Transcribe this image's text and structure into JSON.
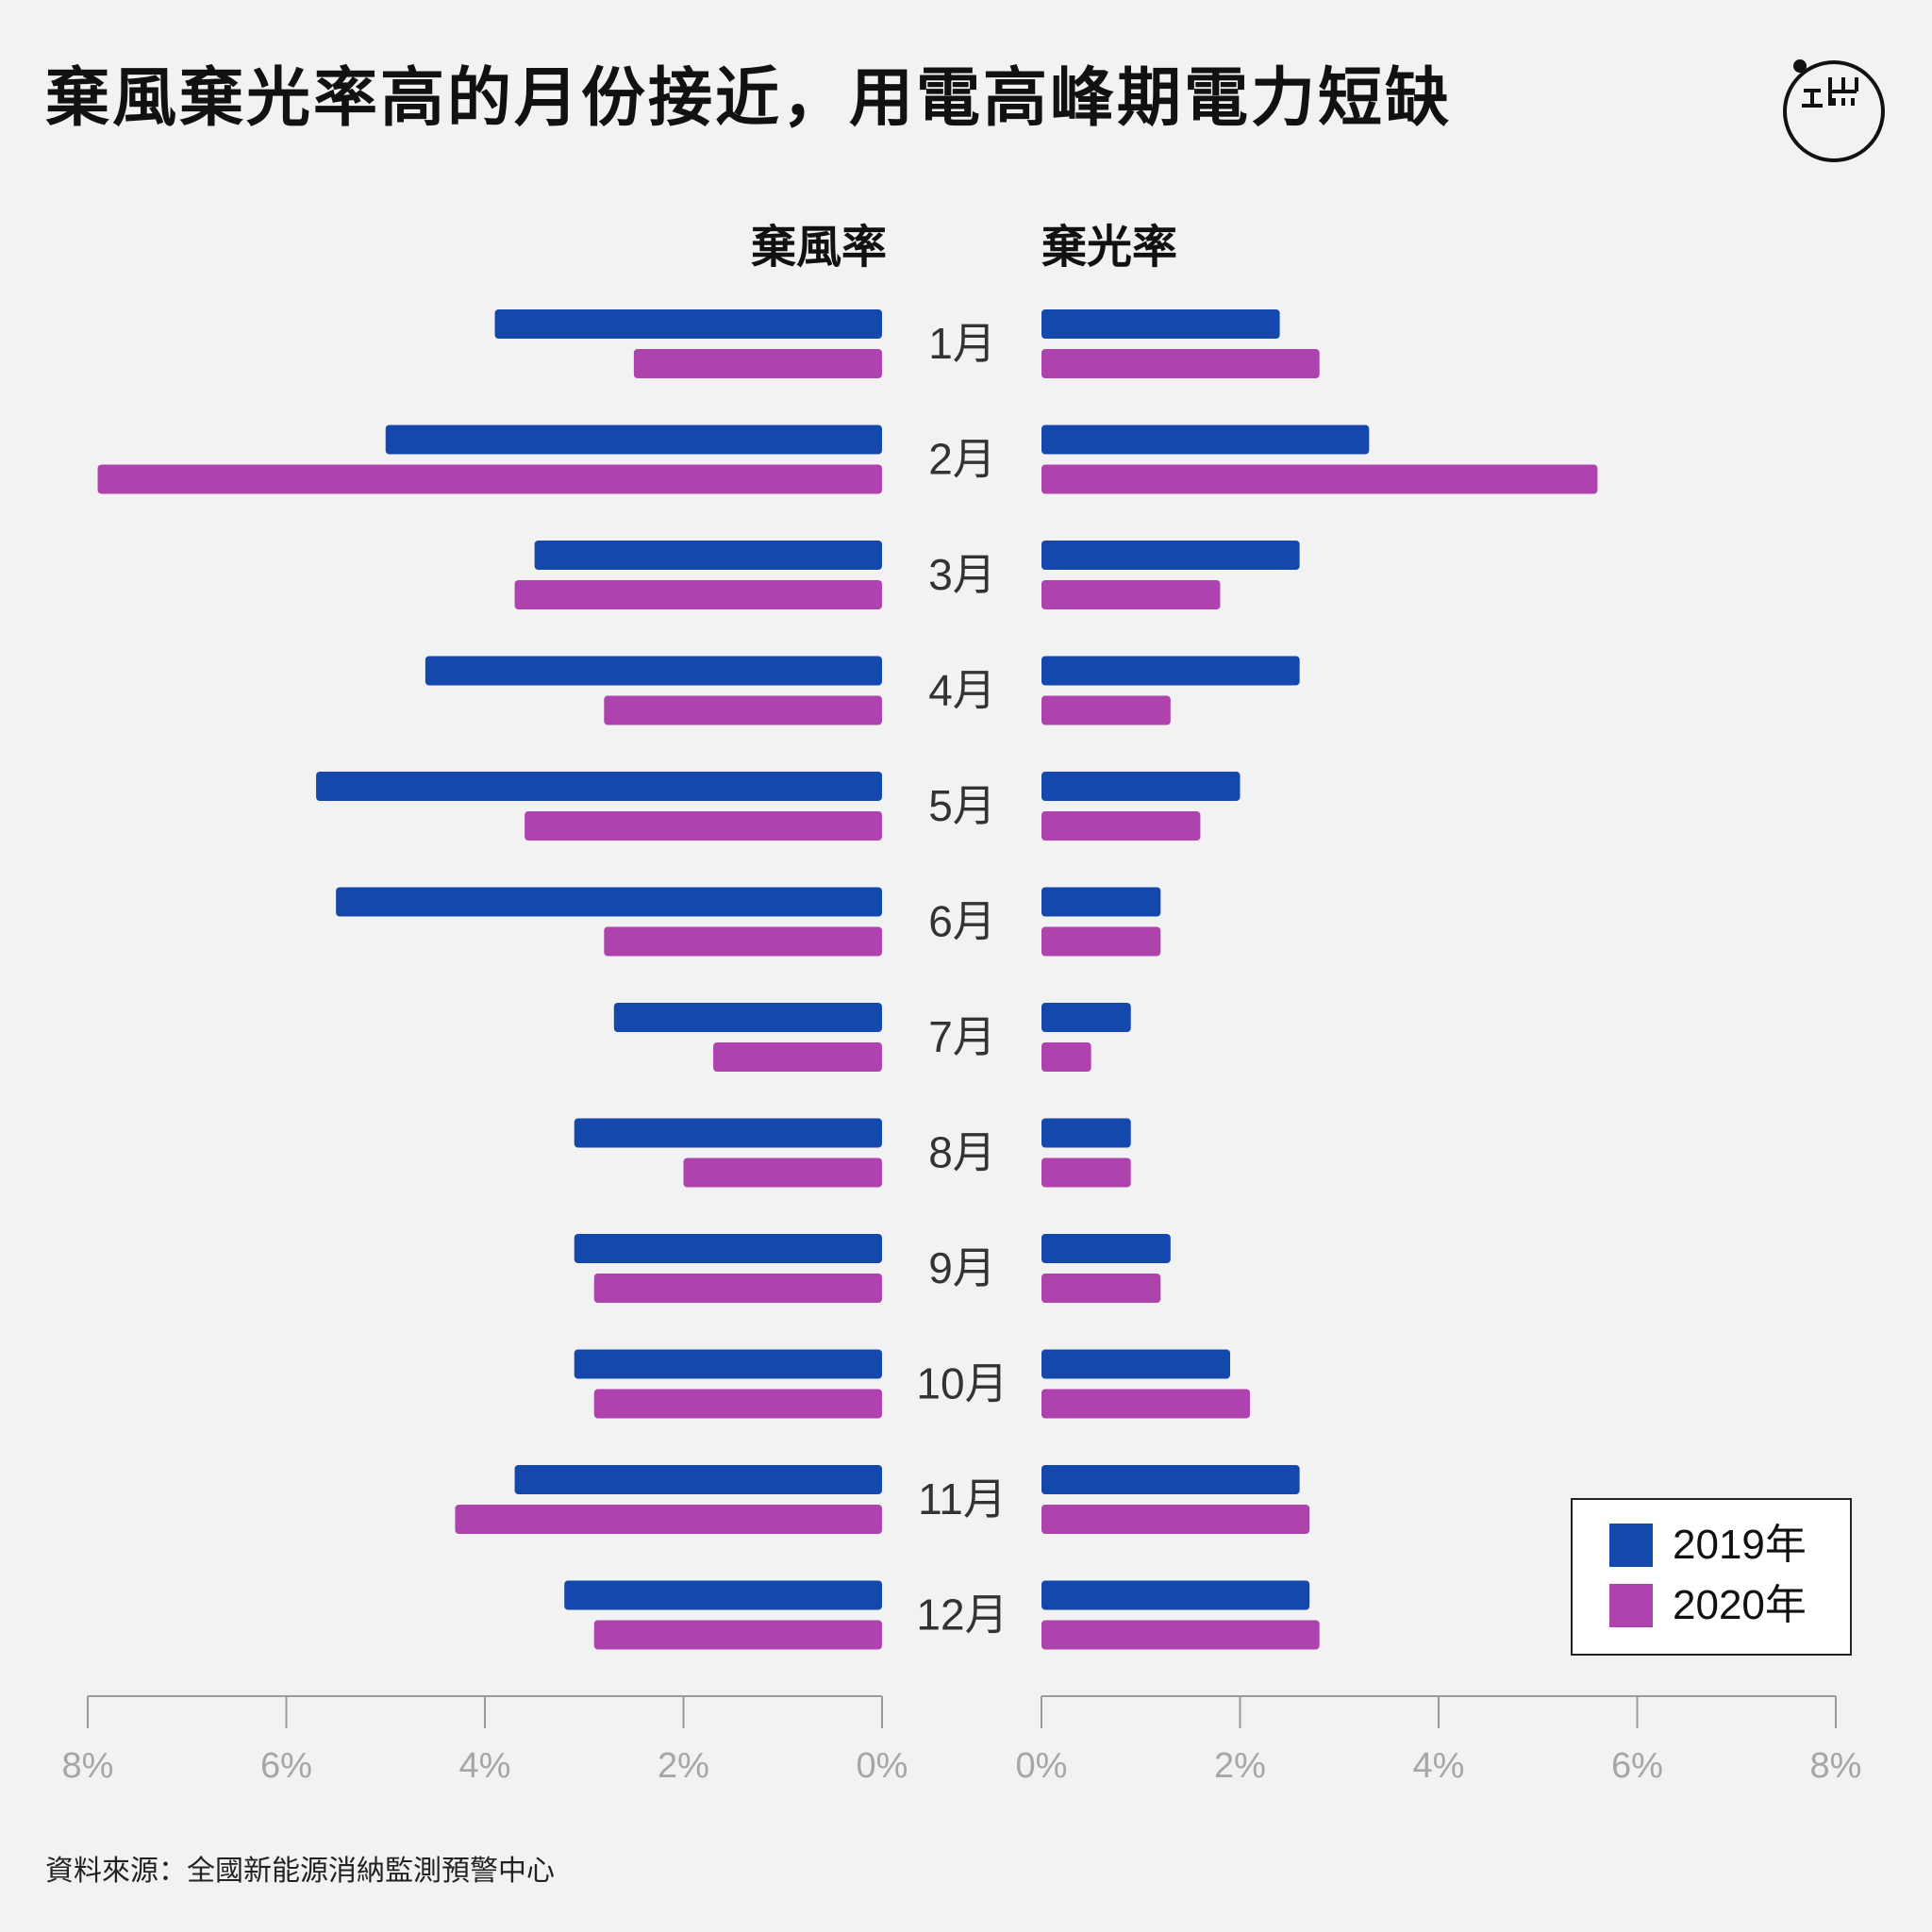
{
  "title": "棄風棄光率高的月份接近，用電高峰期電力短缺",
  "source": "資料來源：全國新能源消納監測預警中心",
  "logo": {
    "icon": "initium-logo-icon",
    "color": "#111111"
  },
  "colors": {
    "series_2019": "#1548ad",
    "series_2020": "#ae43ad",
    "axis": "#9a9a9a",
    "tick_label": "#a6a6a6",
    "month_label": "#333333"
  },
  "chart_data": {
    "type": "bar",
    "orientation": "horizontal-butterfly",
    "categories": [
      "1月",
      "2月",
      "3月",
      "4月",
      "5月",
      "6月",
      "7月",
      "8月",
      "9月",
      "10月",
      "11月",
      "12月"
    ],
    "panels": [
      {
        "title": "棄風率",
        "side": "left",
        "series": [
          {
            "name": "2019年",
            "values": [
              3.9,
              5.0,
              3.5,
              4.6,
              5.7,
              5.5,
              2.7,
              3.1,
              3.1,
              3.1,
              3.7,
              3.2
            ]
          },
          {
            "name": "2020年",
            "values": [
              2.5,
              7.9,
              3.7,
              2.8,
              3.6,
              2.8,
              1.7,
              2.0,
              2.9,
              2.9,
              4.3,
              2.9
            ]
          }
        ]
      },
      {
        "title": "棄光率",
        "side": "right",
        "series": [
          {
            "name": "2019年",
            "values": [
              2.4,
              3.3,
              2.6,
              2.6,
              2.0,
              1.2,
              0.9,
              0.9,
              1.3,
              1.9,
              2.6,
              2.7
            ]
          },
          {
            "name": "2020年",
            "values": [
              2.8,
              5.6,
              1.8,
              1.3,
              1.6,
              1.2,
              0.5,
              0.9,
              1.2,
              2.1,
              2.7,
              2.8
            ]
          }
        ]
      }
    ],
    "xlim": [
      0,
      8
    ],
    "xticks": [
      "8%",
      "6%",
      "4%",
      "2%",
      "0%"
    ],
    "xticks_right": [
      "0%",
      "2%",
      "4%",
      "6%",
      "8%"
    ],
    "legend": [
      "2019年",
      "2020年"
    ],
    "legend_position": "bottom-right"
  }
}
